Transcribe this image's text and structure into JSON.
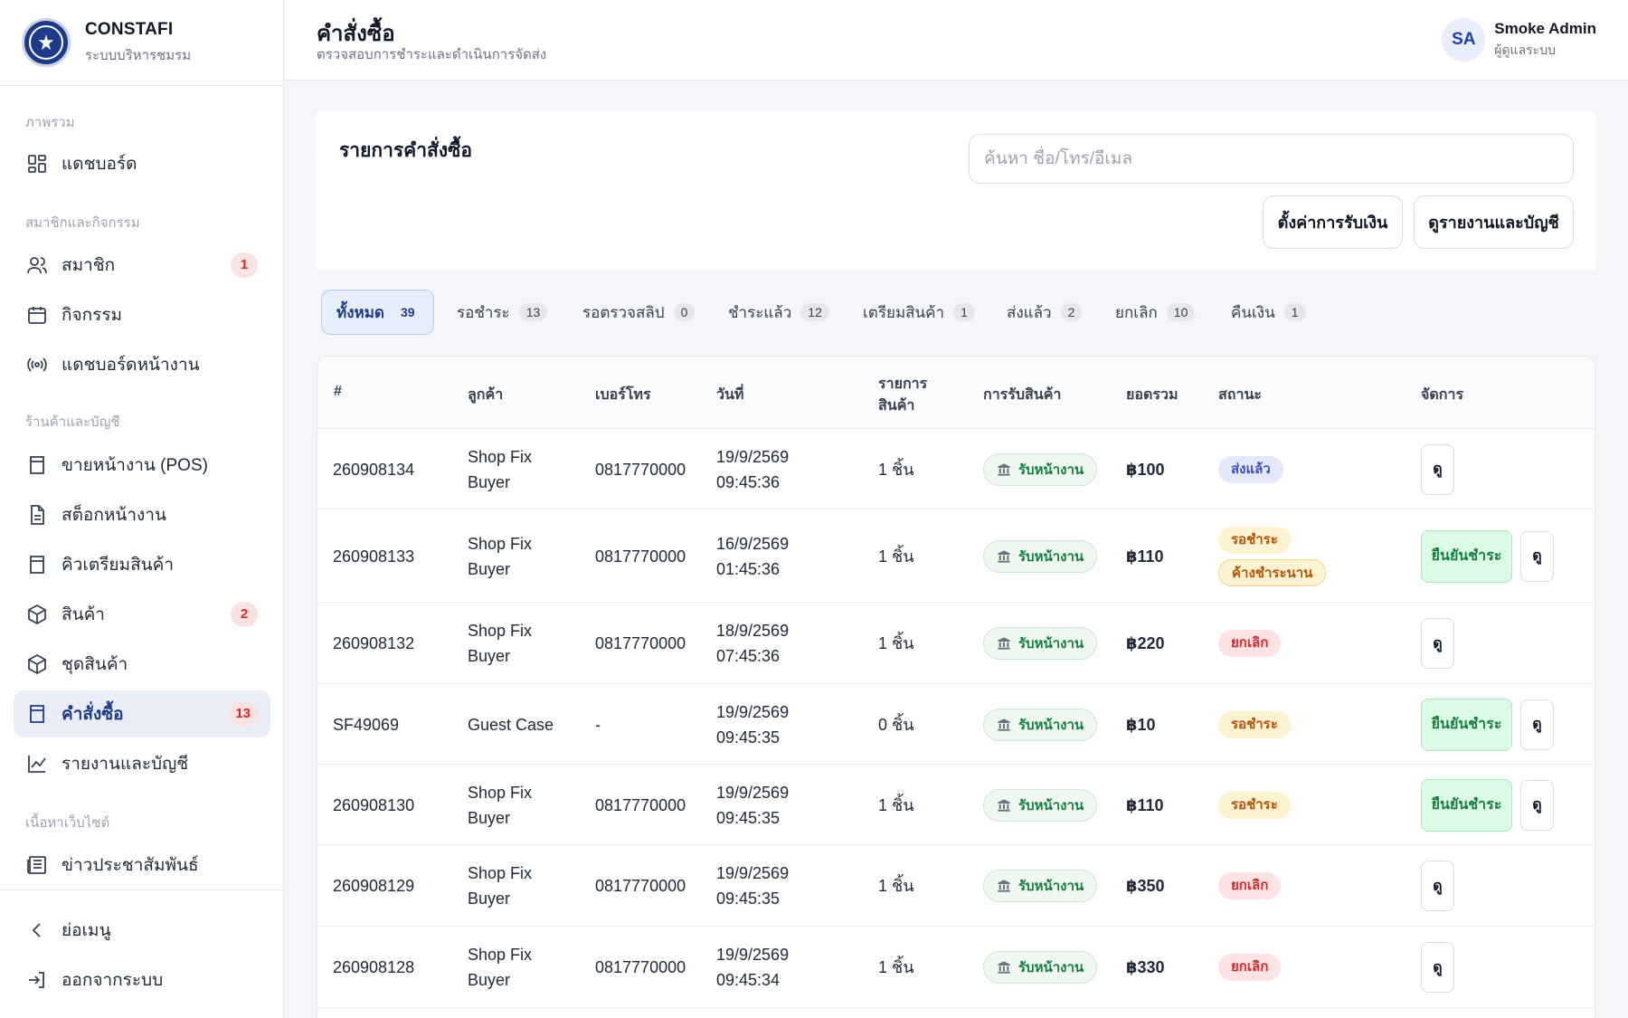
{
  "brand": {
    "title": "CONSTAFI",
    "subtitle": "ระบบบริหารชมรม"
  },
  "sidebar": {
    "sections": [
      "ภาพรวม",
      "สมาชิกและกิจกรรม",
      "ร้านค้าและบัญชี",
      "เนื้อหาเว็บไซต์"
    ],
    "items": [
      {
        "label": "แดชบอร์ด",
        "icon": "dashboard-icon"
      },
      {
        "label": "สมาชิก",
        "icon": "users-icon",
        "badge": "1"
      },
      {
        "label": "กิจกรรม",
        "icon": "calendar-icon"
      },
      {
        "label": "แดชบอร์ดหน้างาน",
        "icon": "broadcast-icon"
      },
      {
        "label": "ขายหน้างาน (POS)",
        "icon": "pos-icon"
      },
      {
        "label": "สต็อกหน้างาน",
        "icon": "document-icon"
      },
      {
        "label": "คิวเตรียมสินค้า",
        "icon": "queue-icon"
      },
      {
        "label": "สินค้า",
        "icon": "box-icon",
        "badge": "2"
      },
      {
        "label": "ชุดสินค้า",
        "icon": "bundle-icon"
      },
      {
        "label": "คำสั่งซื้อ",
        "icon": "orders-icon",
        "badge": "13",
        "active": true
      },
      {
        "label": "รายงานและบัญชี",
        "icon": "chart-icon"
      },
      {
        "label": "ข่าวประชาสัมพันธ์",
        "icon": "news-icon"
      }
    ],
    "footer": [
      {
        "label": "ย่อเมนู",
        "icon": "chevron-left-icon"
      },
      {
        "label": "ออกจากระบบ",
        "icon": "logout-icon"
      }
    ]
  },
  "header": {
    "title": "คำสั่งซื้อ",
    "subtitle": "ตรวจสอบการชำระและดำเนินการจัดส่ง",
    "user": {
      "initials": "SA",
      "name": "Smoke Admin",
      "role": "ผู้ดูแลระบบ"
    }
  },
  "panel": {
    "title": "รายการคำสั่งซื้อ",
    "search_placeholder": "ค้นหา ชื่อ/โทร/อีเมล",
    "search_value": "",
    "payment_settings_label": "ตั้งค่าการรับเงิน",
    "reports_label": "ดูรายงานและบัญชี"
  },
  "tabs": [
    {
      "label": "ทั้งหมด",
      "count": "39",
      "active": true
    },
    {
      "label": "รอชำระ",
      "count": "13"
    },
    {
      "label": "รอตรวจสลิป",
      "count": "0"
    },
    {
      "label": "ชำระแล้ว",
      "count": "12"
    },
    {
      "label": "เตรียมสินค้า",
      "count": "1"
    },
    {
      "label": "ส่งแล้ว",
      "count": "2"
    },
    {
      "label": "ยกเลิก",
      "count": "10"
    },
    {
      "label": "คืนเงิน",
      "count": "1"
    }
  ],
  "table": {
    "headers": {
      "id": "#",
      "customer": "ลูกค้า",
      "phone": "เบอร์โทร",
      "date": "วันที่",
      "items_line1": "รายการ",
      "items_line2": "สินค้า",
      "pickup": "การรับสินค้า",
      "total": "ยอดรวม",
      "status": "สถานะ",
      "actions": "จัดการ"
    },
    "pickup_label": "รับหน้างาน",
    "confirm_label": "ยืนยันชำระ",
    "view_label": "ดู",
    "rows": [
      {
        "id": "260908134",
        "customer1": "Shop Fix",
        "customer2": "Buyer",
        "phone": "0817770000",
        "date": "19/9/2569",
        "time": "09:45:36",
        "items": "1 ชิ้น",
        "total": "฿100",
        "status": "ส่งแล้ว",
        "status_type": "shipped",
        "confirm": false
      },
      {
        "id": "260908133",
        "customer1": "Shop Fix",
        "customer2": "Buyer",
        "phone": "0817770000",
        "date": "16/9/2569",
        "time": "01:45:36",
        "items": "1 ชิ้น",
        "total": "฿110",
        "status": "รอชำระ",
        "status_type": "pending",
        "status2": "ค้างชำระนาน",
        "confirm": true
      },
      {
        "id": "260908132",
        "customer1": "Shop Fix",
        "customer2": "Buyer",
        "phone": "0817770000",
        "date": "18/9/2569",
        "time": "07:45:36",
        "items": "1 ชิ้น",
        "total": "฿220",
        "status": "ยกเลิก",
        "status_type": "cancelled",
        "confirm": false
      },
      {
        "id": "SF49069",
        "customer1": "Guest Case",
        "customer2": "",
        "phone": "-",
        "date": "19/9/2569",
        "time": "09:45:35",
        "items": "0 ชิ้น",
        "total": "฿10",
        "status": "รอชำระ",
        "status_type": "pending",
        "confirm": true
      },
      {
        "id": "260908130",
        "customer1": "Shop Fix",
        "customer2": "Buyer",
        "phone": "0817770000",
        "date": "19/9/2569",
        "time": "09:45:35",
        "items": "1 ชิ้น",
        "total": "฿110",
        "status": "รอชำระ",
        "status_type": "pending",
        "confirm": true
      },
      {
        "id": "260908129",
        "customer1": "Shop Fix",
        "customer2": "Buyer",
        "phone": "0817770000",
        "date": "19/9/2569",
        "time": "09:45:35",
        "items": "1 ชิ้น",
        "total": "฿350",
        "status": "ยกเลิก",
        "status_type": "cancelled",
        "confirm": false
      },
      {
        "id": "260908128",
        "customer1": "Shop Fix",
        "customer2": "Buyer",
        "phone": "0817770000",
        "date": "19/9/2569",
        "time": "09:45:34",
        "items": "1 ชิ้น",
        "total": "฿330",
        "status": "ยกเลิก",
        "status_type": "cancelled",
        "confirm": false
      }
    ]
  },
  "colors": {
    "accent": "#1e3a8a",
    "active_bg": "#e8edf8",
    "badge_red": "#dc2626",
    "success_green": "#15803d"
  }
}
